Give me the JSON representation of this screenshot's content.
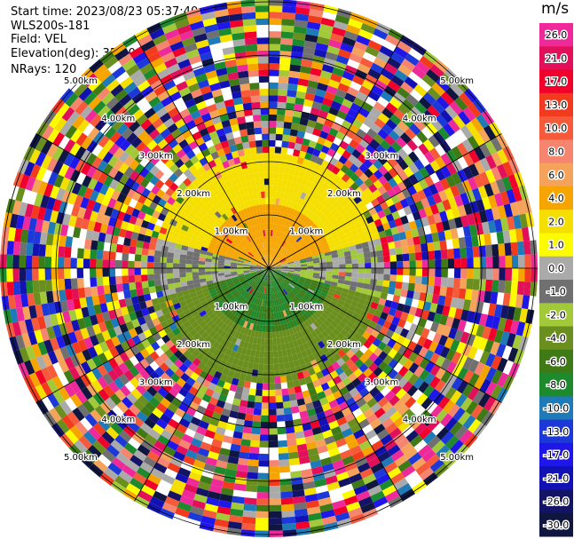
{
  "header": {
    "start_time": "Start time: 2023/08/23 05:37:40",
    "site": "WLS200s-181",
    "field": "Field: VEL",
    "elevation": "Elevation(deg): 35.30",
    "nrays": "NRays: 120"
  },
  "colorbar": {
    "unit": "m/s",
    "ticks": [
      "26.0",
      "21.0",
      "17.0",
      "13.0",
      "10.0",
      "8.0",
      "6.0",
      "4.0",
      "2.0",
      "1.0",
      "0.0",
      "-1.0",
      "-2.0",
      "-4.0",
      "-6.0",
      "-8.0",
      "-10.0",
      "-13.0",
      "-17.0",
      "-21.0",
      "-26.0",
      "-30.0"
    ],
    "colors": [
      "#ee2a9b",
      "#e2105a",
      "#f0002a",
      "#f23b1e",
      "#f55a3b",
      "#f6856f",
      "#f5a35a",
      "#f6a500",
      "#f5df00",
      "#fdfb00",
      "#aaaaaa",
      "#707070",
      "#a1c93a",
      "#6b8f1e",
      "#3f7a17",
      "#1d8a2d",
      "#1f7ab8",
      "#1d38d8",
      "#1f16e8",
      "#1212b4",
      "#141466",
      "#0f1640"
    ]
  },
  "chart_data": {
    "type": "polar_ppi",
    "field": "VEL",
    "unit": "m/s",
    "range_rings_km": [
      1.0,
      2.0,
      3.0,
      4.0,
      5.0
    ],
    "ring_labels": [
      "1.00km",
      "2.00km",
      "3.00km",
      "4.00km",
      "5.00km"
    ],
    "rays": 120,
    "spokes_deg": [
      0,
      30,
      60,
      90,
      120,
      150,
      180,
      210,
      240,
      270,
      300,
      330
    ],
    "valid_range_km": 2.2,
    "pattern": {
      "north_inner": "orange 4 to 6 m/s",
      "north_outer": "yellow 2 to 4 m/s",
      "south_inner": "green -4 to -8 m/s",
      "east_west_band": "gray/olive 0 to -2 m/s",
      "beyond_valid_range": "noise across full colour scale"
    },
    "grid": true
  }
}
